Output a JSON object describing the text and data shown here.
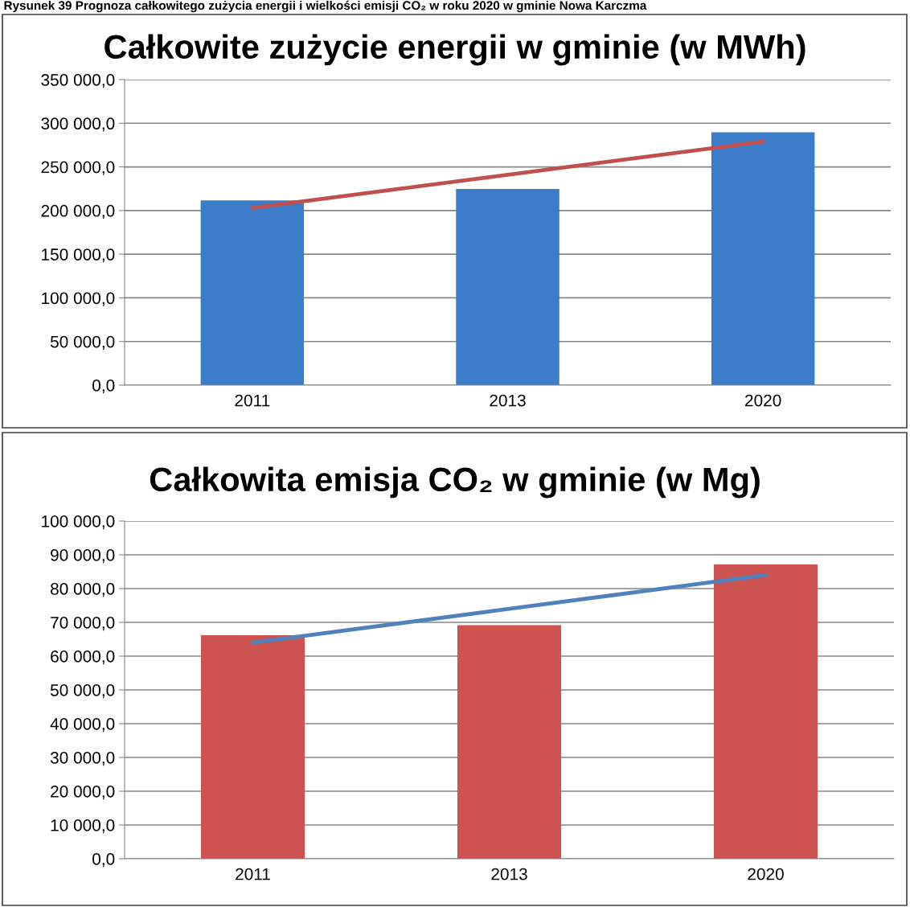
{
  "chart_data": [
    {
      "type": "bar",
      "title": "Całkowite zużycie energii w gminie (w MWh)",
      "annotations": [
        "Rysunek 39 Prognoza całkowitego zużycia energii i wielkości emisji CO₂ w roku 2020 w gminie Nowa Karczma"
      ],
      "categories": [
        "2011",
        "2013",
        "2020"
      ],
      "series": [
        {
          "color": "#3d7cc9",
          "values": [
            211000,
            224000,
            289000
          ]
        },
        {
          "type": "line",
          "color": "#c0504d",
          "values": [
            203000,
            241000,
            279000
          ]
        }
      ],
      "ylim": [
        0,
        350000
      ],
      "yticks": [
        {
          "value": 0,
          "label": "0,0"
        },
        {
          "value": 50000,
          "label": "50 000,0"
        },
        {
          "value": 100000,
          "label": "100 000,0"
        },
        {
          "value": 150000,
          "label": "150 000,0"
        },
        {
          "value": 200000,
          "label": "200 000,0"
        },
        {
          "value": 250000,
          "label": "250 000,0"
        },
        {
          "value": 300000,
          "label": "300 000,0"
        },
        {
          "value": 350000,
          "label": "350 000,0"
        }
      ],
      "grid": "y",
      "legend": false
    },
    {
      "type": "bar",
      "title": "Całkowita emisja CO₂ w gminie (w Mg)",
      "categories": [
        "2011",
        "2013",
        "2020"
      ],
      "series": [
        {
          "color": "#cd5350",
          "values": [
            66000,
            69000,
            87000
          ]
        },
        {
          "type": "line",
          "color": "#4f81bd",
          "values": [
            64000,
            74000,
            84000
          ]
        }
      ],
      "ylim": [
        0,
        100000
      ],
      "yticks": [
        {
          "value": 0,
          "label": "0,0"
        },
        {
          "value": 10000,
          "label": "10 000,0"
        },
        {
          "value": 20000,
          "label": "20 000,0"
        },
        {
          "value": 30000,
          "label": "30 000,0"
        },
        {
          "value": 40000,
          "label": "40 000,0"
        },
        {
          "value": 50000,
          "label": "50 000,0"
        },
        {
          "value": 60000,
          "label": "60 000,0"
        },
        {
          "value": 70000,
          "label": "70 000,0"
        },
        {
          "value": 80000,
          "label": "80 000,0"
        },
        {
          "value": 90000,
          "label": "90 000,0"
        },
        {
          "value": 100000,
          "label": "100 000,0"
        }
      ],
      "grid": "y",
      "legend": false
    }
  ]
}
